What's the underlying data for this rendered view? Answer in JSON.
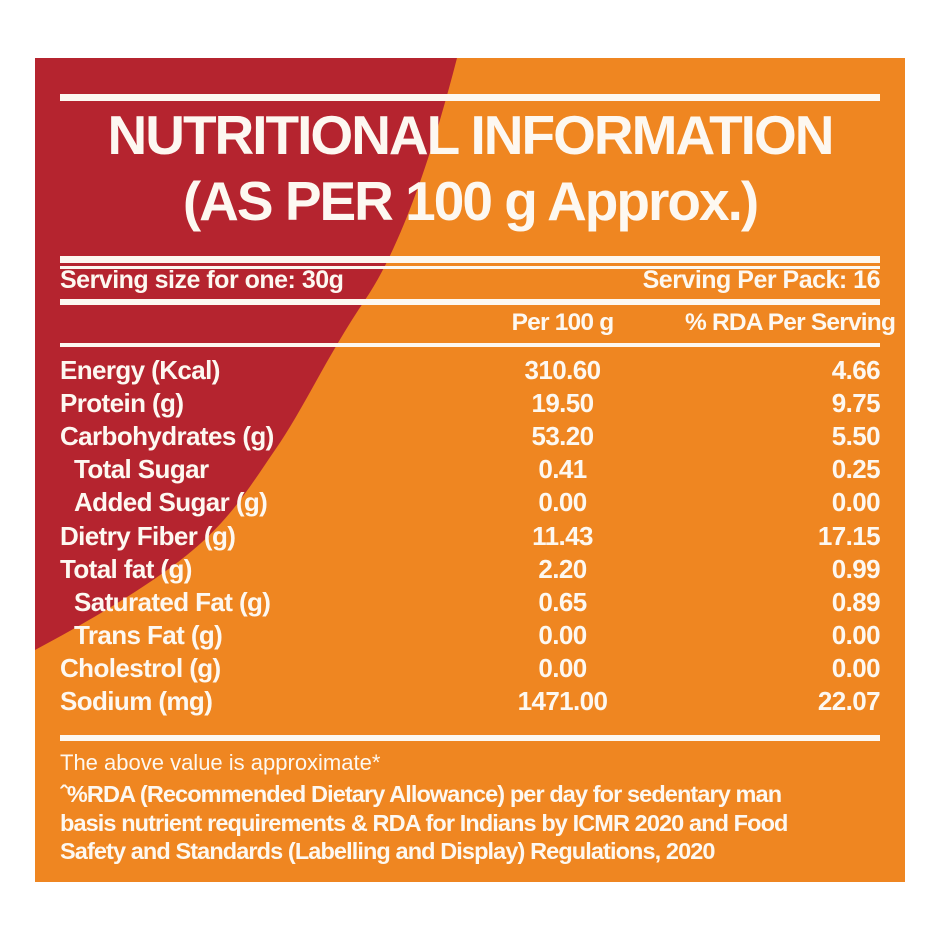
{
  "label": {
    "title_line1": "NUTRITIONAL INFORMATION",
    "title_line2": "(AS PER 100 g Approx.)",
    "serving_size": "Serving size for one: 30g",
    "serving_per_pack": "Serving Per Pack: 16",
    "columns": {
      "per_100g": "Per 100 g",
      "rda_per_serving": "% RDA Per Serving"
    },
    "rows": [
      {
        "label": "Energy (Kcal)",
        "per_100g": "310.60",
        "rda": "4.66",
        "indent": false
      },
      {
        "label": "Protein (g)",
        "per_100g": "19.50",
        "rda": "9.75",
        "indent": false
      },
      {
        "label": "Carbohydrates (g)",
        "per_100g": "53.20",
        "rda": "5.50",
        "indent": false
      },
      {
        "label": "Total Sugar",
        "per_100g": "0.41",
        "rda": "0.25",
        "indent": true
      },
      {
        "label": "Added Sugar (g)",
        "per_100g": "0.00",
        "rda": "0.00",
        "indent": true
      },
      {
        "label": "Dietry Fiber (g)",
        "per_100g": "11.43",
        "rda": "17.15",
        "indent": false
      },
      {
        "label": "Total fat (g)",
        "per_100g": "2.20",
        "rda": "0.99",
        "indent": false
      },
      {
        "label": "Saturated Fat (g)",
        "per_100g": "0.65",
        "rda": "0.89",
        "indent": true
      },
      {
        "label": "Trans Fat (g)",
        "per_100g": "0.00",
        "rda": "0.00",
        "indent": true
      },
      {
        "label": "Cholestrol (g)",
        "per_100g": "0.00",
        "rda": "0.00",
        "indent": false
      },
      {
        "label": "Sodium (mg)",
        "per_100g": "1471.00",
        "rda": "22.07",
        "indent": false
      }
    ],
    "approx_note": "The above value is approximate*",
    "rda_note_lines": [
      "ˆ%RDA (Recommended Dietary Allowance) per day for sedentary man",
      "basis nutrient requirements & RDA for Indians by ICMR 2020 and Food",
      "Safety and Standards (Labelling and Display) Regulations, 2020"
    ]
  },
  "colors": {
    "red": "#b5242f",
    "orange": "#ef8621",
    "text": "#fdf8f1"
  }
}
